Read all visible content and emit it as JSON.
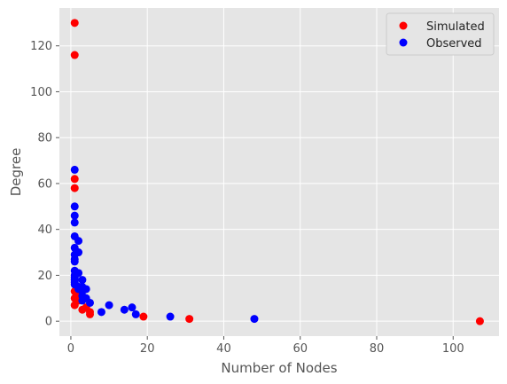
{
  "chart_data": {
    "type": "scatter",
    "xlabel": "Number of Nodes",
    "ylabel": "Degree",
    "xlim": [
      -3,
      112
    ],
    "ylim": [
      -6.5,
      136.5
    ],
    "xticks": [
      0,
      20,
      40,
      60,
      80,
      100
    ],
    "yticks": [
      0,
      20,
      40,
      60,
      80,
      100,
      120
    ],
    "grid": true,
    "legend_position": "top-right",
    "series": [
      {
        "name": "Simulated",
        "color": "#ff0000",
        "points": [
          [
            1,
            130
          ],
          [
            1,
            116
          ],
          [
            1,
            62
          ],
          [
            1,
            58
          ],
          [
            1,
            13
          ],
          [
            1,
            10
          ],
          [
            1,
            7
          ],
          [
            2,
            12
          ],
          [
            2,
            9
          ],
          [
            3,
            5
          ],
          [
            4,
            6
          ],
          [
            5,
            4
          ],
          [
            5,
            3
          ],
          [
            19,
            2
          ],
          [
            31,
            1
          ],
          [
            107,
            0
          ]
        ]
      },
      {
        "name": "Observed",
        "color": "#0000ff",
        "points": [
          [
            1,
            66
          ],
          [
            1,
            50
          ],
          [
            1,
            46
          ],
          [
            1,
            43
          ],
          [
            1,
            37
          ],
          [
            1,
            32
          ],
          [
            1,
            29
          ],
          [
            1,
            27
          ],
          [
            1,
            26
          ],
          [
            1,
            22
          ],
          [
            1,
            20
          ],
          [
            1,
            19
          ],
          [
            1,
            18
          ],
          [
            1,
            17
          ],
          [
            1,
            16
          ],
          [
            2,
            35
          ],
          [
            2,
            30
          ],
          [
            2,
            21
          ],
          [
            2,
            15
          ],
          [
            2,
            14
          ],
          [
            3,
            18
          ],
          [
            3,
            15
          ],
          [
            3,
            13
          ],
          [
            3,
            11
          ],
          [
            3,
            9
          ],
          [
            4,
            14
          ],
          [
            4,
            10
          ],
          [
            5,
            8
          ],
          [
            8,
            4
          ],
          [
            10,
            7
          ],
          [
            14,
            5
          ],
          [
            16,
            6
          ],
          [
            17,
            3
          ],
          [
            26,
            2
          ],
          [
            48,
            1
          ]
        ]
      }
    ]
  }
}
